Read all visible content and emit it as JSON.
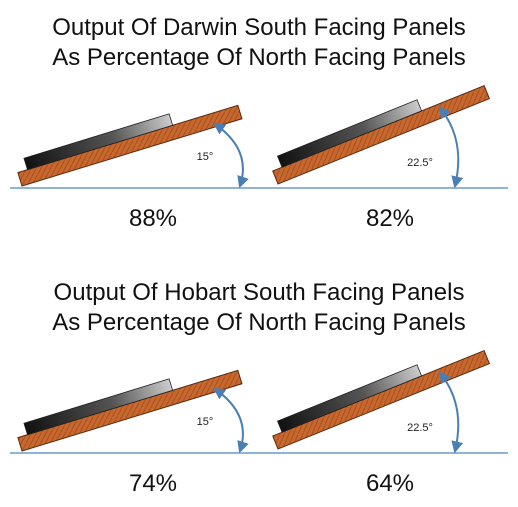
{
  "sections": [
    {
      "title_lines": [
        "Output Of Darwin South Facing Panels",
        "As Percentage Of North Facing Panels"
      ],
      "panels": [
        {
          "angle": "15°",
          "output": "88%"
        },
        {
          "angle": "22.5°",
          "output": "82%"
        }
      ]
    },
    {
      "title_lines": [
        "Output Of Hobart South Facing Panels",
        "As Percentage Of North Facing Panels"
      ],
      "panels": [
        {
          "angle": "15°",
          "output": "74%"
        },
        {
          "angle": "22.5°",
          "output": "64%"
        }
      ]
    }
  ]
}
